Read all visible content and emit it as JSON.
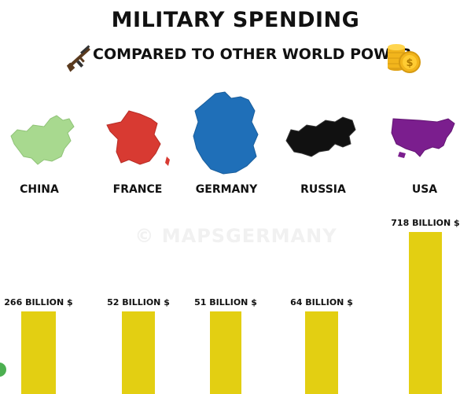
{
  "title": "MILITARY SPENDING",
  "subtitle": "COMPARED TO OTHER WORLD POWER",
  "watermark": "© MAPSGERMANY",
  "icons": {
    "left": "rifle-icon",
    "right": "coin-stack-icon"
  },
  "colors": {
    "bar": "#e3cf12",
    "china": "#a8d98f",
    "france": "#d83a32",
    "germany": "#1f6fb8",
    "russia": "#111111",
    "usa": "#7b1e8e",
    "coin": "#f2b51c"
  },
  "chart_data": {
    "type": "bar",
    "title": "MILITARY SPENDING",
    "subtitle": "COMPARED TO OTHER WORLD POWER",
    "categories": [
      "CHINA",
      "FRANCE",
      "GERMANY",
      "RUSSIA",
      "USA"
    ],
    "values": [
      266,
      52,
      51,
      64,
      718
    ],
    "value_labels": [
      "266 BILLION $",
      "52 BILLION $",
      "51 BILLION $",
      "64 BILLION $",
      "718 BILLION $"
    ],
    "unit": "BILLION $",
    "grid": false,
    "legend": "none"
  }
}
